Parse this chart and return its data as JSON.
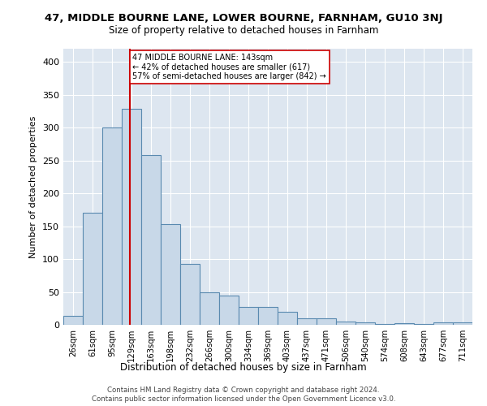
{
  "title_line1": "47, MIDDLE BOURNE LANE, LOWER BOURNE, FARNHAM, GU10 3NJ",
  "title_line2": "Size of property relative to detached houses in Farnham",
  "xlabel": "Distribution of detached houses by size in Farnham",
  "ylabel": "Number of detached properties",
  "bin_labels": [
    "26sqm",
    "61sqm",
    "95sqm",
    "129sqm",
    "163sqm",
    "198sqm",
    "232sqm",
    "266sqm",
    "300sqm",
    "334sqm",
    "369sqm",
    "403sqm",
    "437sqm",
    "471sqm",
    "506sqm",
    "540sqm",
    "574sqm",
    "608sqm",
    "643sqm",
    "677sqm",
    "711sqm"
  ],
  "bar_heights": [
    13,
    170,
    300,
    328,
    258,
    153,
    93,
    50,
    44,
    27,
    27,
    20,
    10,
    10,
    5,
    4,
    1,
    2,
    1,
    4,
    4
  ],
  "bar_color": "#c8d8e8",
  "bar_edge_color": "#5a8ab0",
  "property_label": "47 MIDDLE BOURNE LANE: 143sqm",
  "annotation_line2": "← 42% of detached houses are smaller (617)",
  "annotation_line3": "57% of semi-detached houses are larger (842) →",
  "red_line_color": "#cc0000",
  "annotation_box_color": "#ffffff",
  "annotation_box_edge": "#cc0000",
  "ylim": [
    0,
    420
  ],
  "background_color": "#dde6f0",
  "footer_line1": "Contains HM Land Registry data © Crown copyright and database right 2024.",
  "footer_line2": "Contains public sector information licensed under the Open Government Licence v3.0."
}
